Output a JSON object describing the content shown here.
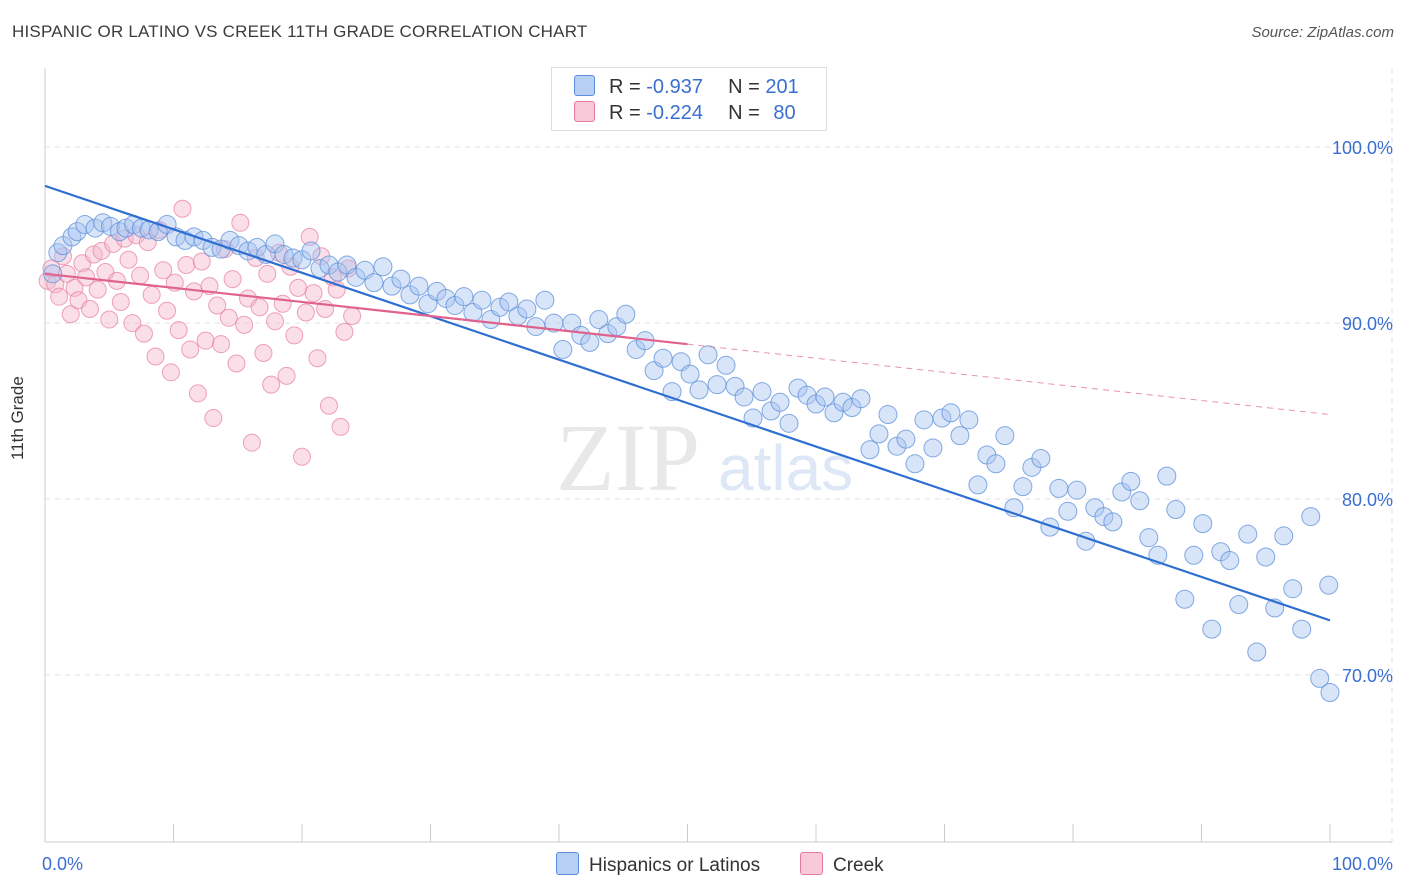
{
  "title": "HISPANIC OR LATINO VS CREEK 11TH GRADE CORRELATION CHART",
  "source": "Source: ZipAtlas.com",
  "watermark": {
    "zip": "ZIP",
    "atlas": "atlas"
  },
  "legend": {
    "rows": [
      {
        "r_label": "R =",
        "r_value": "-0.937",
        "n_label": "N =",
        "n_value": "201"
      },
      {
        "r_label": "R =",
        "r_value": "-0.224",
        "n_label": "N =",
        "n_value": "80"
      }
    ]
  },
  "bottom_legend": {
    "blue": "Hispanics or Latinos",
    "pink": "Creek"
  },
  "colors": {
    "blue": "#5b8fd9",
    "blue_fill": "#a9c4ef",
    "pink": "#e87aa0",
    "pink_fill": "#f4b8cc",
    "blue_line": "#2f6fd1",
    "pink_line": "#e0628e",
    "tick_text": "#3a6fd0"
  },
  "chart_data": {
    "type": "scatter",
    "title": "HISPANIC OR LATINO VS CREEK 11TH GRADE CORRELATION CHART",
    "xlabel": "",
    "ylabel": "11th Grade",
    "x_tick_labels": [
      "0.0%",
      "100.0%"
    ],
    "y_tick_labels": [
      "100.0%",
      "90.0%",
      "80.0%",
      "70.0%"
    ],
    "y_ticks": [
      100,
      90,
      80,
      70
    ],
    "xlim": [
      0,
      100
    ],
    "ylim": [
      60.5,
      104.5
    ],
    "grid": true,
    "series": [
      {
        "name": "Hispanics or Latinos",
        "color": "#5b8fd9",
        "trend": {
          "x": [
            0,
            100
          ],
          "y": [
            97.8,
            73.1
          ]
        },
        "points": [
          [
            0.6,
            92.8
          ],
          [
            1.0,
            94.0
          ],
          [
            1.4,
            94.4
          ],
          [
            2.1,
            94.9
          ],
          [
            2.5,
            95.2
          ],
          [
            3.1,
            95.6
          ],
          [
            3.9,
            95.4
          ],
          [
            4.5,
            95.7
          ],
          [
            5.1,
            95.5
          ],
          [
            5.8,
            95.2
          ],
          [
            6.3,
            95.4
          ],
          [
            6.9,
            95.6
          ],
          [
            7.5,
            95.4
          ],
          [
            8.1,
            95.3
          ],
          [
            8.8,
            95.2
          ],
          [
            9.5,
            95.6
          ],
          [
            10.2,
            94.9
          ],
          [
            10.9,
            94.7
          ],
          [
            11.6,
            94.9
          ],
          [
            12.3,
            94.7
          ],
          [
            13.0,
            94.3
          ],
          [
            13.7,
            94.2
          ],
          [
            14.4,
            94.7
          ],
          [
            15.1,
            94.4
          ],
          [
            15.8,
            94.1
          ],
          [
            16.5,
            94.3
          ],
          [
            17.2,
            93.9
          ],
          [
            17.9,
            94.5
          ],
          [
            18.6,
            93.9
          ],
          [
            19.3,
            93.7
          ],
          [
            20.0,
            93.6
          ],
          [
            20.7,
            94.1
          ],
          [
            21.4,
            93.1
          ],
          [
            22.1,
            93.3
          ],
          [
            22.8,
            92.9
          ],
          [
            23.5,
            93.3
          ],
          [
            24.2,
            92.6
          ],
          [
            24.9,
            93.0
          ],
          [
            25.6,
            92.3
          ],
          [
            26.3,
            93.2
          ],
          [
            27.0,
            92.1
          ],
          [
            27.7,
            92.5
          ],
          [
            28.4,
            91.6
          ],
          [
            29.1,
            92.1
          ],
          [
            29.8,
            91.1
          ],
          [
            30.5,
            91.8
          ],
          [
            31.2,
            91.4
          ],
          [
            31.9,
            91.0
          ],
          [
            32.6,
            91.5
          ],
          [
            33.3,
            90.6
          ],
          [
            34.0,
            91.3
          ],
          [
            34.7,
            90.2
          ],
          [
            35.4,
            90.9
          ],
          [
            36.1,
            91.2
          ],
          [
            36.8,
            90.4
          ],
          [
            37.5,
            90.8
          ],
          [
            38.2,
            89.8
          ],
          [
            38.9,
            91.3
          ],
          [
            39.6,
            90.0
          ],
          [
            40.3,
            88.5
          ],
          [
            41.0,
            90.0
          ],
          [
            41.7,
            89.3
          ],
          [
            42.4,
            88.9
          ],
          [
            43.1,
            90.2
          ],
          [
            43.8,
            89.4
          ],
          [
            44.5,
            89.8
          ],
          [
            45.2,
            90.5
          ],
          [
            46.0,
            88.5
          ],
          [
            46.7,
            89.0
          ],
          [
            47.4,
            87.3
          ],
          [
            48.1,
            88.0
          ],
          [
            48.8,
            86.1
          ],
          [
            49.5,
            87.8
          ],
          [
            50.2,
            87.1
          ],
          [
            50.9,
            86.2
          ],
          [
            51.6,
            88.2
          ],
          [
            52.3,
            86.5
          ],
          [
            53.0,
            87.6
          ],
          [
            53.7,
            86.4
          ],
          [
            54.4,
            85.8
          ],
          [
            55.1,
            84.6
          ],
          [
            55.8,
            86.1
          ],
          [
            56.5,
            85.0
          ],
          [
            57.2,
            85.5
          ],
          [
            57.9,
            84.3
          ],
          [
            58.6,
            86.3
          ],
          [
            59.3,
            85.9
          ],
          [
            60.0,
            85.4
          ],
          [
            60.7,
            85.8
          ],
          [
            61.4,
            84.9
          ],
          [
            62.1,
            85.5
          ],
          [
            62.8,
            85.2
          ],
          [
            63.5,
            85.7
          ],
          [
            64.2,
            82.8
          ],
          [
            64.9,
            83.7
          ],
          [
            65.6,
            84.8
          ],
          [
            66.3,
            83.0
          ],
          [
            67.0,
            83.4
          ],
          [
            67.7,
            82.0
          ],
          [
            68.4,
            84.5
          ],
          [
            69.1,
            82.9
          ],
          [
            69.8,
            84.6
          ],
          [
            70.5,
            84.9
          ],
          [
            71.2,
            83.6
          ],
          [
            71.9,
            84.5
          ],
          [
            72.6,
            80.8
          ],
          [
            73.3,
            82.5
          ],
          [
            74.0,
            82.0
          ],
          [
            74.7,
            83.6
          ],
          [
            75.4,
            79.5
          ],
          [
            76.1,
            80.7
          ],
          [
            76.8,
            81.8
          ],
          [
            77.5,
            82.3
          ],
          [
            78.2,
            78.4
          ],
          [
            78.9,
            80.6
          ],
          [
            79.6,
            79.3
          ],
          [
            80.3,
            80.5
          ],
          [
            81.0,
            77.6
          ],
          [
            81.7,
            79.5
          ],
          [
            82.4,
            79.0
          ],
          [
            83.1,
            78.7
          ],
          [
            83.8,
            80.4
          ],
          [
            84.5,
            81.0
          ],
          [
            85.2,
            79.9
          ],
          [
            85.9,
            77.8
          ],
          [
            86.6,
            76.8
          ],
          [
            87.3,
            81.3
          ],
          [
            88.0,
            79.4
          ],
          [
            88.7,
            74.3
          ],
          [
            89.4,
            76.8
          ],
          [
            90.1,
            78.6
          ],
          [
            90.8,
            72.6
          ],
          [
            91.5,
            77.0
          ],
          [
            92.2,
            76.5
          ],
          [
            92.9,
            74.0
          ],
          [
            93.6,
            78.0
          ],
          [
            94.3,
            71.3
          ],
          [
            95.0,
            76.7
          ],
          [
            95.7,
            73.8
          ],
          [
            96.4,
            77.9
          ],
          [
            97.1,
            74.9
          ],
          [
            97.8,
            72.6
          ],
          [
            98.5,
            79.0
          ],
          [
            99.2,
            69.8
          ],
          [
            99.9,
            75.1
          ],
          [
            100.0,
            69.0
          ]
        ]
      },
      {
        "name": "Creek",
        "color": "#e87aa0",
        "trend": {
          "x": [
            0,
            50
          ],
          "y": [
            92.8,
            88.8
          ]
        },
        "points": [
          [
            0.2,
            92.4
          ],
          [
            0.5,
            93.1
          ],
          [
            0.8,
            92.2
          ],
          [
            1.1,
            91.5
          ],
          [
            1.4,
            93.8
          ],
          [
            1.7,
            92.8
          ],
          [
            2.0,
            90.5
          ],
          [
            2.3,
            92.0
          ],
          [
            2.6,
            91.3
          ],
          [
            2.9,
            93.4
          ],
          [
            3.2,
            92.6
          ],
          [
            3.5,
            90.8
          ],
          [
            3.8,
            93.9
          ],
          [
            4.1,
            91.9
          ],
          [
            4.4,
            94.1
          ],
          [
            4.7,
            92.9
          ],
          [
            5.0,
            90.2
          ],
          [
            5.3,
            94.5
          ],
          [
            5.6,
            92.4
          ],
          [
            5.9,
            91.2
          ],
          [
            6.2,
            94.8
          ],
          [
            6.5,
            93.6
          ],
          [
            6.8,
            90.0
          ],
          [
            7.1,
            95.0
          ],
          [
            7.4,
            92.7
          ],
          [
            7.7,
            89.4
          ],
          [
            8.0,
            94.6
          ],
          [
            8.3,
            91.6
          ],
          [
            8.6,
            88.1
          ],
          [
            8.9,
            95.3
          ],
          [
            9.2,
            93.0
          ],
          [
            9.5,
            90.7
          ],
          [
            9.8,
            87.2
          ],
          [
            10.1,
            92.3
          ],
          [
            10.4,
            89.6
          ],
          [
            10.7,
            96.5
          ],
          [
            11.0,
            93.3
          ],
          [
            11.3,
            88.5
          ],
          [
            11.6,
            91.8
          ],
          [
            11.9,
            86.0
          ],
          [
            12.2,
            93.5
          ],
          [
            12.5,
            89.0
          ],
          [
            12.8,
            92.1
          ],
          [
            13.1,
            84.6
          ],
          [
            13.4,
            91.0
          ],
          [
            13.7,
            88.8
          ],
          [
            14.0,
            94.2
          ],
          [
            14.3,
            90.3
          ],
          [
            14.6,
            92.5
          ],
          [
            14.9,
            87.7
          ],
          [
            15.2,
            95.7
          ],
          [
            15.5,
            89.9
          ],
          [
            15.8,
            91.4
          ],
          [
            16.1,
            83.2
          ],
          [
            16.4,
            93.7
          ],
          [
            16.7,
            90.9
          ],
          [
            17.0,
            88.3
          ],
          [
            17.3,
            92.8
          ],
          [
            17.6,
            86.5
          ],
          [
            17.9,
            90.1
          ],
          [
            18.2,
            94.0
          ],
          [
            18.5,
            91.1
          ],
          [
            18.8,
            87.0
          ],
          [
            19.1,
            93.2
          ],
          [
            19.4,
            89.3
          ],
          [
            19.7,
            92.0
          ],
          [
            20.0,
            82.4
          ],
          [
            20.3,
            90.6
          ],
          [
            20.6,
            94.9
          ],
          [
            20.9,
            91.7
          ],
          [
            21.2,
            88.0
          ],
          [
            21.5,
            93.8
          ],
          [
            21.8,
            90.8
          ],
          [
            22.1,
            85.3
          ],
          [
            22.4,
            92.6
          ],
          [
            22.7,
            91.9
          ],
          [
            23.0,
            84.1
          ],
          [
            23.3,
            89.5
          ],
          [
            23.6,
            93.1
          ],
          [
            23.9,
            90.4
          ]
        ]
      }
    ]
  }
}
